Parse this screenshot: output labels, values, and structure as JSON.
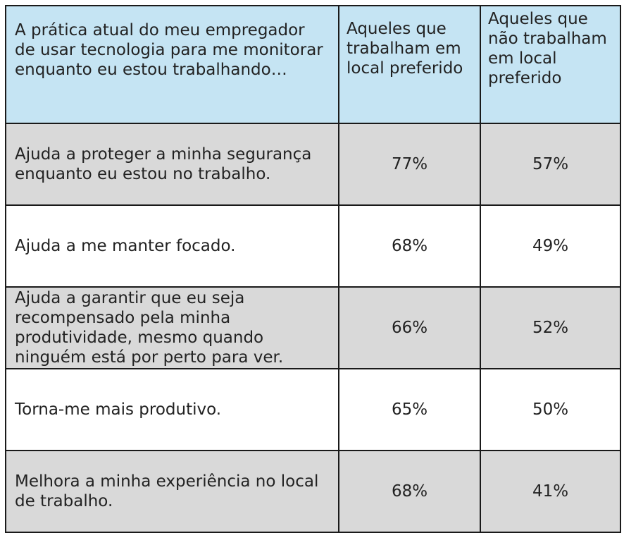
{
  "chart_data": {
    "type": "table",
    "columns": [
      "A prática atual do meu empregador de usar tecnologia para me monitorar enquanto eu estou trabalhando…",
      "Aqueles que trabalham em local preferido",
      "Aqueles que não trabalham em local preferido"
    ],
    "rows": [
      {
        "label": "Ajuda a proteger a minha segurança enquanto eu estou no trabalho.",
        "values": [
          "77%",
          "57%"
        ]
      },
      {
        "label": "Ajuda a me manter focado.",
        "values": [
          "68%",
          "49%"
        ]
      },
      {
        "label": "Ajuda a garantir que eu seja recompensado pela minha produtividade, mesmo quando ninguém está por perto para ver.",
        "values": [
          "66%",
          "52%"
        ]
      },
      {
        "label": "Torna-me mais produtivo.",
        "values": [
          "65%",
          "50%"
        ]
      },
      {
        "label": "Melhora a minha experiência no local de trabalho.",
        "values": [
          "68%",
          "41%"
        ]
      }
    ],
    "colors": {
      "header_background": "#c5e4f3",
      "shaded_row": "#d9d9d9",
      "plain_row": "#ffffff",
      "border": "#1a1a1a"
    }
  }
}
